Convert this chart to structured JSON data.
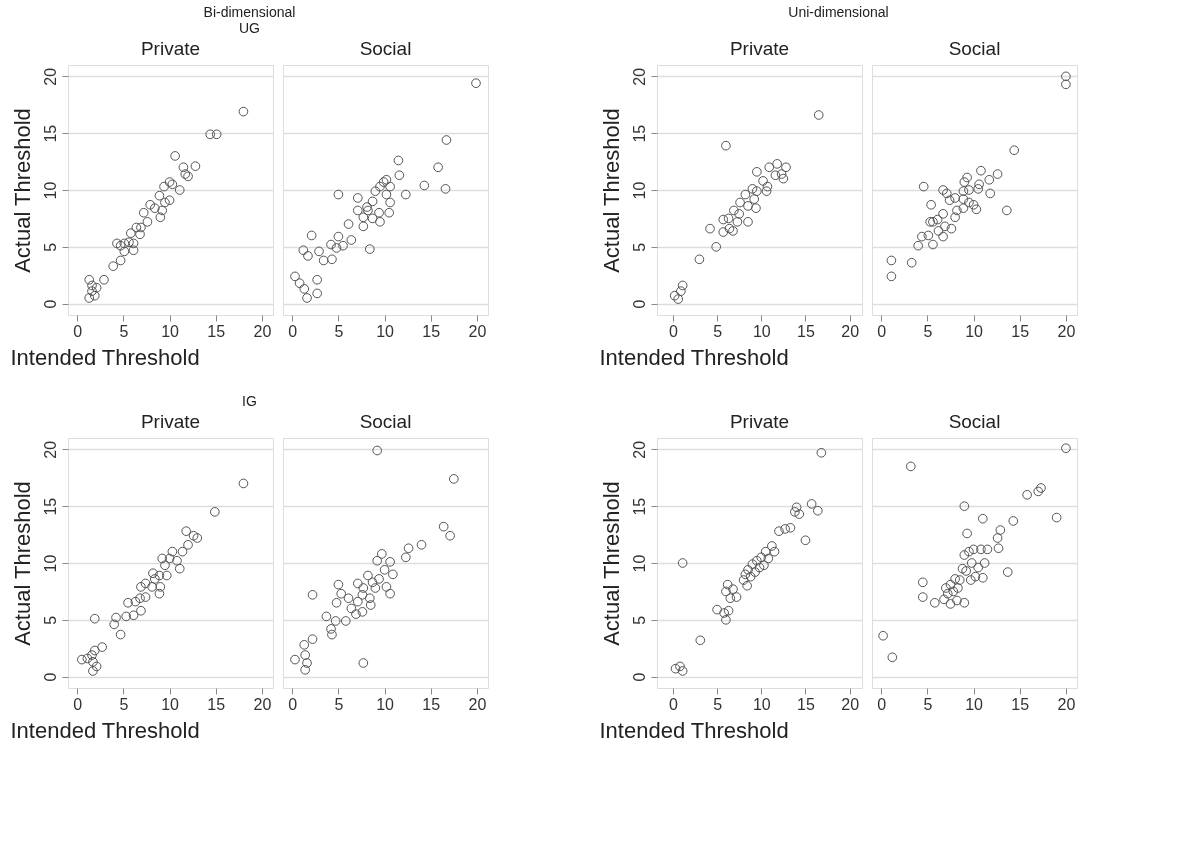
{
  "chart_data": [
    {
      "type": "scatter",
      "title": "Private",
      "xlabel": "Intended Threshold",
      "ylabel": "Actual Threshold",
      "annotations": [
        "Bi-dimensional",
        "UG"
      ],
      "xlim": [
        -1,
        21.2
      ],
      "ylim": [
        -1,
        21
      ],
      "xticks": [
        0,
        5,
        10,
        15,
        20
      ],
      "yticks": [
        0,
        5,
        10,
        15,
        20
      ],
      "grid": "y",
      "marker": "circle",
      "series": [
        {
          "color": "#555555",
          "x": [
            18.0,
            14.4,
            15.1,
            10.6,
            11.5,
            12.8,
            11.7,
            12.0,
            10.0,
            9.4,
            10.3,
            11.1,
            8.9,
            9.5,
            10.0,
            7.9,
            8.4,
            9.2,
            9.0,
            7.2,
            7.6,
            6.9,
            6.4,
            5.8,
            6.8,
            5.6,
            6.1,
            5.1,
            4.3,
            4.7,
            6.1,
            5.1,
            4.7,
            3.9,
            2.9,
            1.3,
            1.6,
            2.1,
            1.3,
            1.9,
            1.6
          ],
          "values": [
            16.9,
            14.9,
            14.9,
            13.0,
            12.0,
            12.1,
            11.4,
            11.2,
            10.7,
            10.3,
            10.5,
            10.0,
            9.5,
            8.9,
            9.1,
            8.7,
            8.4,
            8.2,
            7.6,
            8.0,
            7.2,
            6.7,
            6.7,
            6.2,
            6.1,
            5.4,
            5.3,
            5.3,
            5.3,
            5.1,
            4.7,
            4.6,
            3.8,
            3.3,
            2.1,
            2.1,
            1.6,
            1.4,
            0.5,
            0.7,
            1.1
          ]
        }
      ]
    },
    {
      "type": "scatter",
      "title": "Social",
      "xlim": [
        -1,
        21.2
      ],
      "ylim": [
        -1,
        21
      ],
      "xticks": [
        0,
        5,
        10,
        15,
        20
      ],
      "yticks": [
        0,
        5,
        10,
        15,
        20
      ],
      "grid": "y",
      "marker": "circle",
      "tick_labels": "x",
      "series": [
        {
          "color": "#555555",
          "x": [
            19.9,
            16.7,
            15.8,
            16.6,
            14.3,
            11.5,
            11.6,
            10.2,
            9.9,
            9.5,
            10.6,
            9.0,
            10.2,
            12.3,
            5.0,
            7.1,
            8.7,
            10.6,
            8.1,
            7.1,
            8.2,
            7.7,
            9.4,
            10.5,
            8.7,
            9.5,
            6.1,
            7.7,
            8.4,
            5.0,
            6.4,
            4.2,
            5.5,
            4.8,
            2.9,
            1.2,
            1.7,
            3.4,
            4.3,
            2.1,
            0.3,
            0.8,
            1.3,
            2.7,
            2.7,
            1.6
          ],
          "values": [
            19.4,
            14.4,
            12.0,
            10.1,
            10.4,
            12.6,
            11.3,
            10.9,
            10.7,
            10.3,
            10.3,
            9.9,
            9.6,
            9.6,
            9.6,
            9.3,
            9.0,
            8.9,
            8.5,
            8.2,
            8.2,
            7.6,
            8.0,
            8.0,
            7.5,
            7.2,
            7.0,
            6.8,
            4.8,
            5.9,
            5.6,
            5.2,
            5.1,
            4.9,
            4.6,
            4.7,
            4.2,
            3.8,
            3.9,
            6.0,
            2.4,
            1.8,
            1.3,
            2.1,
            0.9,
            0.5
          ]
        }
      ]
    },
    {
      "type": "scatter",
      "title": "Private",
      "xlabel": "Intended Threshold",
      "ylabel": "Actual Threshold",
      "annotations": [
        "Uni-dimensional"
      ],
      "xlim": [
        -1.8,
        21.4
      ],
      "ylim": [
        -1,
        21
      ],
      "xticks": [
        0,
        5,
        10,
        15,
        20
      ],
      "yticks": [
        0,
        5,
        10,
        15,
        20
      ],
      "grid": "y",
      "marker": "circle",
      "series": [
        {
          "color": "#555555",
          "x": [
            16.5,
            6.0,
            10.9,
            11.8,
            12.8,
            12.3,
            12.5,
            11.6,
            9.5,
            10.2,
            10.7,
            9.0,
            9.5,
            8.2,
            10.6,
            9.2,
            7.6,
            8.5,
            9.4,
            6.9,
            7.5,
            8.5,
            6.3,
            5.7,
            7.3,
            6.4,
            5.7,
            6.8,
            4.2,
            4.9,
            3.0,
            1.1,
            0.9,
            0.2,
            0.6
          ],
          "values": [
            16.6,
            13.9,
            12.0,
            12.3,
            12.0,
            11.4,
            11.0,
            11.3,
            11.6,
            10.8,
            10.3,
            10.1,
            9.9,
            9.6,
            9.9,
            9.2,
            8.9,
            8.6,
            8.4,
            8.2,
            7.9,
            7.2,
            7.5,
            7.4,
            7.2,
            6.6,
            6.3,
            6.4,
            6.6,
            5.0,
            3.9,
            1.6,
            1.1,
            0.7,
            0.4
          ]
        }
      ]
    },
    {
      "type": "scatter",
      "title": "Social",
      "xlim": [
        -1,
        21.2
      ],
      "ylim": [
        -1,
        21
      ],
      "xticks": [
        0,
        5,
        10,
        15,
        20
      ],
      "yticks": [
        0,
        5,
        10,
        15,
        20
      ],
      "grid": "y",
      "marker": "circle",
      "tick_labels": "x",
      "series": [
        {
          "color": "#555555",
          "x": [
            20.0,
            20.0,
            14.4,
            12.6,
            10.8,
            11.7,
            10.6,
            11.8,
            9.3,
            9.0,
            10.5,
            9.5,
            8.9,
            7.1,
            6.7,
            4.6,
            8.0,
            7.4,
            8.9,
            9.5,
            8.9,
            10.3,
            10.0,
            8.2,
            8.0,
            13.6,
            5.4,
            6.7,
            6.1,
            5.6,
            5.3,
            6.9,
            7.6,
            6.2,
            6.7,
            5.1,
            4.4,
            5.6,
            4.0,
            3.3,
            1.1,
            1.1
          ],
          "values": [
            20.0,
            19.3,
            13.5,
            11.4,
            11.7,
            10.9,
            10.5,
            9.7,
            11.1,
            10.7,
            10.1,
            10.0,
            9.9,
            9.7,
            10.0,
            10.3,
            9.3,
            9.1,
            9.2,
            8.9,
            8.4,
            8.3,
            8.7,
            8.2,
            7.6,
            8.2,
            8.7,
            7.9,
            7.4,
            7.2,
            7.2,
            6.8,
            6.6,
            6.4,
            5.9,
            6.0,
            5.9,
            5.2,
            5.1,
            3.6,
            3.8,
            2.4
          ]
        }
      ]
    },
    {
      "type": "scatter",
      "title": "Private",
      "xlabel": "Intended Threshold",
      "ylabel": "Actual Threshold",
      "annotations": [
        "IG"
      ],
      "xlim": [
        -1,
        21.2
      ],
      "ylim": [
        -1,
        21
      ],
      "xticks": [
        0,
        5,
        10,
        15,
        20
      ],
      "yticks": [
        0,
        5,
        10,
        15,
        20
      ],
      "grid": "y",
      "marker": "circle",
      "series": [
        {
          "color": "#555555",
          "x": [
            18.0,
            14.9,
            11.8,
            12.6,
            13.0,
            12.0,
            11.4,
            10.3,
            9.2,
            10.0,
            10.8,
            11.1,
            9.5,
            8.2,
            8.9,
            9.7,
            8.4,
            6.9,
            7.4,
            8.1,
            9.0,
            8.9,
            7.4,
            6.8,
            6.3,
            5.5,
            6.9,
            6.1,
            5.3,
            4.2,
            4.0,
            4.7,
            1.9,
            2.7,
            1.9,
            1.6,
            0.5,
            1.1,
            1.7,
            2.1,
            1.7
          ],
          "values": [
            17.0,
            14.5,
            12.8,
            12.4,
            12.2,
            11.6,
            11.0,
            11.0,
            10.4,
            10.4,
            10.2,
            9.5,
            9.8,
            9.1,
            8.9,
            8.9,
            8.6,
            7.9,
            8.2,
            7.9,
            7.9,
            7.3,
            7.0,
            6.9,
            6.6,
            6.5,
            5.8,
            5.4,
            5.3,
            5.2,
            4.6,
            3.7,
            5.1,
            2.6,
            2.3,
            1.9,
            1.5,
            1.6,
            1.3,
            0.9,
            0.5
          ]
        }
      ]
    },
    {
      "type": "scatter",
      "title": "Social",
      "xlim": [
        -1,
        21.2
      ],
      "ylim": [
        -1,
        21
      ],
      "xticks": [
        0,
        5,
        10,
        15,
        20
      ],
      "yticks": [
        0,
        5,
        10,
        15,
        20
      ],
      "grid": "y",
      "marker": "circle",
      "tick_labels": "x",
      "series": [
        {
          "color": "#555555",
          "x": [
            9.2,
            17.5,
            16.4,
            17.1,
            14.0,
            12.6,
            12.3,
            9.7,
            9.2,
            10.6,
            10.9,
            10.0,
            8.2,
            9.4,
            8.7,
            7.1,
            5.0,
            7.7,
            10.2,
            9.0,
            10.6,
            6.1,
            7.1,
            8.4,
            7.6,
            5.3,
            4.8,
            8.5,
            7.6,
            6.9,
            6.4,
            5.8,
            4.7,
            3.7,
            4.2,
            4.3,
            2.2,
            2.2,
            1.3,
            1.4,
            0.3,
            1.6,
            1.4,
            7.7
          ],
          "values": [
            19.9,
            17.4,
            13.2,
            12.4,
            11.6,
            11.3,
            10.5,
            10.8,
            10.2,
            10.1,
            9.0,
            9.4,
            8.9,
            8.6,
            8.3,
            8.2,
            8.1,
            7.8,
            7.9,
            7.8,
            7.3,
            6.9,
            6.6,
            6.9,
            7.2,
            7.3,
            6.5,
            6.3,
            5.7,
            5.5,
            6.0,
            4.9,
            4.9,
            5.3,
            4.2,
            3.7,
            7.2,
            3.3,
            2.8,
            1.9,
            1.5,
            1.2,
            0.6,
            1.2
          ]
        }
      ]
    },
    {
      "type": "scatter",
      "title": "Private",
      "xlabel": "Intended Threshold",
      "ylabel": "Actual Threshold",
      "xlim": [
        -1.8,
        21.4
      ],
      "ylim": [
        -1,
        21
      ],
      "xticks": [
        0,
        5,
        10,
        15,
        20
      ],
      "yticks": [
        0,
        5,
        10,
        15,
        20
      ],
      "grid": "y",
      "marker": "circle",
      "series": [
        {
          "color": "#555555",
          "x": [
            0.3,
            0.8,
            1.1,
            1.1,
            3.1,
            5.0,
            5.8,
            6.0,
            6.3,
            6.5,
            6.0,
            6.2,
            6.8,
            7.2,
            8.0,
            8.2,
            8.4,
            8.5,
            8.8,
            9.0,
            9.3,
            9.5,
            9.8,
            10.0,
            10.3,
            10.5,
            10.8,
            11.2,
            11.5,
            12.0,
            12.7,
            13.3,
            13.8,
            14.0,
            14.3,
            15.0,
            15.7,
            16.4,
            16.8
          ],
          "values": [
            0.7,
            0.9,
            0.5,
            10.0,
            3.2,
            5.9,
            5.6,
            5.0,
            5.8,
            6.9,
            7.5,
            8.1,
            7.7,
            7.0,
            8.5,
            9.0,
            8.0,
            9.4,
            8.8,
            9.9,
            9.2,
            10.2,
            9.6,
            10.5,
            9.8,
            11.0,
            10.4,
            11.5,
            11.0,
            12.8,
            13.0,
            13.1,
            14.5,
            14.9,
            14.3,
            12.0,
            15.2,
            14.6,
            19.7
          ]
        }
      ]
    },
    {
      "type": "scatter",
      "title": "Social",
      "xlim": [
        -1,
        21.2
      ],
      "ylim": [
        -1,
        21
      ],
      "xticks": [
        0,
        5,
        10,
        15,
        20
      ],
      "yticks": [
        0,
        5,
        10,
        15,
        20
      ],
      "grid": "y",
      "marker": "circle",
      "tick_labels": "x",
      "series": [
        {
          "color": "#555555",
          "x": [
            20.0,
            3.2,
            17.3,
            17.0,
            15.8,
            14.3,
            19.0,
            13.7,
            12.9,
            12.6,
            12.7,
            11.0,
            11.5,
            10.8,
            9.0,
            9.3,
            9.5,
            10.0,
            9.0,
            9.8,
            8.8,
            9.2,
            10.5,
            11.2,
            10.2,
            11.0,
            9.7,
            8.5,
            8.0,
            7.5,
            7.0,
            7.8,
            8.3,
            7.2,
            6.8,
            7.5,
            8.2,
            9.0,
            5.8,
            4.5,
            4.5,
            0.2,
            1.2
          ],
          "values": [
            20.1,
            18.5,
            16.6,
            16.3,
            16.0,
            13.7,
            14.0,
            9.2,
            12.9,
            12.2,
            11.3,
            13.9,
            11.2,
            11.2,
            15.0,
            12.6,
            11.0,
            11.2,
            10.7,
            10.0,
            9.5,
            9.3,
            9.6,
            10.0,
            8.8,
            8.7,
            8.5,
            8.5,
            8.6,
            8.1,
            7.8,
            7.5,
            7.8,
            7.3,
            6.8,
            6.4,
            6.7,
            6.5,
            6.5,
            8.3,
            7.0,
            3.6,
            1.7
          ]
        }
      ]
    }
  ]
}
